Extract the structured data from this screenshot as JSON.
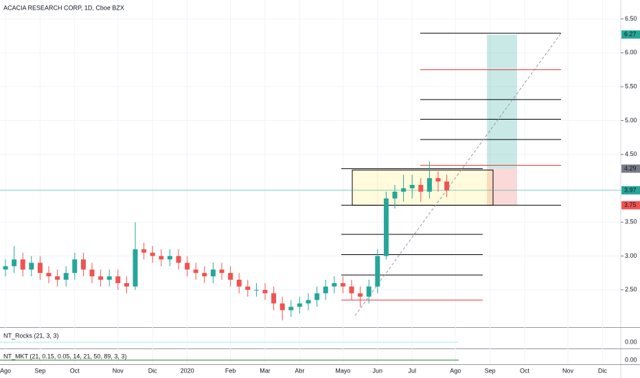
{
  "chart_data": {
    "type": "candlestick",
    "title": "ACACIA RESEARCH CORP, 1D, Cboe BZX",
    "categories": [
      "Ago",
      null,
      null,
      null,
      "Sep",
      null,
      null,
      null,
      "Oct",
      null,
      null,
      null,
      null,
      "Nov",
      null,
      null,
      null,
      "Dic",
      null,
      null,
      null,
      "2020",
      null,
      null,
      null,
      null,
      "Feb",
      null,
      null,
      null,
      "Mar",
      null,
      null,
      null,
      "Abr",
      null,
      null,
      null,
      null,
      "Mayo",
      null,
      null,
      null,
      "Jun",
      null,
      null,
      null,
      "Jul",
      null,
      null,
      null,
      null,
      "Ago",
      null,
      null,
      null,
      "Sep",
      null,
      null,
      null,
      "Oct",
      null,
      null,
      null,
      null,
      "Nov",
      null,
      null,
      null,
      "Dic",
      null,
      null
    ],
    "open": [
      2.8,
      2.85,
      2.95,
      2.8,
      2.9,
      2.75,
      2.7,
      2.65,
      2.75,
      2.95,
      2.8,
      2.7,
      2.65,
      2.7,
      2.6,
      2.55,
      3.1,
      3.05,
      3.0,
      2.95,
      3.0,
      2.9,
      2.8,
      2.75,
      2.7,
      2.8,
      2.75,
      2.65,
      2.55,
      2.5,
      2.5,
      2.45,
      2.3,
      2.2,
      2.25,
      2.3,
      2.35,
      2.45,
      2.55,
      2.6,
      2.55,
      2.45,
      2.4,
      2.55,
      3.0,
      3.85,
      3.95,
      4.0,
      4.05,
      3.95,
      4.15,
      4.1,
      null,
      null,
      null,
      null,
      null,
      null,
      null,
      null,
      null,
      null,
      null,
      null,
      null,
      null,
      null,
      null,
      null,
      null,
      null,
      null
    ],
    "high": [
      2.95,
      3.15,
      3.05,
      3.0,
      3.0,
      2.85,
      2.8,
      2.85,
      3.05,
      3.05,
      2.9,
      2.8,
      2.8,
      2.8,
      2.7,
      3.5,
      3.2,
      3.15,
      3.1,
      3.1,
      3.1,
      3.0,
      2.9,
      2.85,
      2.9,
      2.9,
      2.85,
      2.75,
      2.65,
      2.6,
      2.6,
      2.55,
      2.4,
      2.35,
      2.4,
      2.45,
      2.55,
      2.65,
      2.7,
      2.7,
      2.65,
      2.55,
      2.65,
      3.1,
      3.95,
      4.05,
      4.2,
      4.2,
      4.15,
      4.4,
      4.25,
      4.2,
      null,
      null,
      null,
      null,
      null,
      null,
      null,
      null,
      null,
      null,
      null,
      null,
      null,
      null,
      null,
      null,
      null,
      null,
      null,
      null
    ],
    "low": [
      2.7,
      2.75,
      2.7,
      2.7,
      2.65,
      2.6,
      2.55,
      2.55,
      2.65,
      2.7,
      2.6,
      2.55,
      2.55,
      2.5,
      2.45,
      2.5,
      2.95,
      2.9,
      2.85,
      2.85,
      2.8,
      2.7,
      2.65,
      2.6,
      2.6,
      2.65,
      2.55,
      2.45,
      2.4,
      2.4,
      2.35,
      2.2,
      2.05,
      2.1,
      2.15,
      2.2,
      2.25,
      2.35,
      2.45,
      2.45,
      2.35,
      2.25,
      2.3,
      2.45,
      2.95,
      3.7,
      3.8,
      3.85,
      3.8,
      3.85,
      3.95,
      3.87,
      null,
      null,
      null,
      null,
      null,
      null,
      null,
      null,
      null,
      null,
      null,
      null,
      null,
      null,
      null,
      null,
      null,
      null,
      null,
      null
    ],
    "close": [
      2.85,
      2.95,
      2.8,
      2.9,
      2.75,
      2.7,
      2.65,
      2.75,
      2.95,
      2.8,
      2.7,
      2.65,
      2.7,
      2.6,
      2.55,
      3.1,
      3.05,
      3.0,
      2.95,
      3.0,
      2.9,
      2.8,
      2.75,
      2.7,
      2.8,
      2.75,
      2.65,
      2.55,
      2.5,
      2.5,
      2.45,
      2.3,
      2.2,
      2.25,
      2.3,
      2.35,
      2.45,
      2.55,
      2.6,
      2.55,
      2.45,
      2.4,
      2.55,
      3.0,
      3.85,
      3.95,
      4.0,
      4.05,
      3.95,
      4.15,
      4.1,
      3.97,
      null,
      null,
      null,
      null,
      null,
      null,
      null,
      null,
      null,
      null,
      null,
      null,
      null,
      null,
      null,
      null,
      null,
      null,
      null,
      null
    ],
    "up_color": "#26a69a",
    "down_color": "#ef5350",
    "ylim": [
      1.95,
      6.78
    ],
    "yticks": [
      {
        "value": 6.5,
        "label": "6.50"
      },
      {
        "value": 6.0,
        "label": "6.00"
      },
      {
        "value": 5.5,
        "label": "5.50"
      },
      {
        "value": 5.0,
        "label": "5.00"
      },
      {
        "value": 4.5,
        "label": "4.50"
      },
      {
        "value": 3.5,
        "label": "3.50"
      },
      {
        "value": 3.0,
        "label": "3.00"
      },
      {
        "value": 2.5,
        "label": "2.50"
      }
    ],
    "grid": true,
    "last_price": {
      "value": 3.97,
      "label": "3.97",
      "color": "#26a69a"
    },
    "price_labels": [
      {
        "value": 6.27,
        "label": "6.27",
        "color": "#26a69a"
      },
      {
        "value": 4.29,
        "label": "4.29",
        "color": "#787b86"
      },
      {
        "value": 3.75,
        "label": "3.75",
        "color": "#ef5350"
      }
    ],
    "drawings": {
      "projection_levels": [
        {
          "price": 6.29,
          "color": "#000000"
        },
        {
          "price": 5.75,
          "color": "#e53935"
        },
        {
          "price": 5.31,
          "color": "#000000"
        },
        {
          "price": 5.02,
          "color": "#000000"
        },
        {
          "price": 4.72,
          "color": "#000000"
        },
        {
          "price": 4.34,
          "color": "#e53935"
        },
        {
          "price": 3.75,
          "color": "#000000"
        }
      ],
      "measure_levels": [
        {
          "price": 4.29,
          "color": "#000000"
        },
        {
          "price": 3.32,
          "color": "#000000"
        },
        {
          "price": 3.02,
          "color": "#000000"
        },
        {
          "price": 2.72,
          "color": "#000000"
        },
        {
          "price": 2.35,
          "color": "#e53935"
        }
      ],
      "range_box": {
        "top": 4.27,
        "bottom": 3.75
      },
      "long_position": {
        "entry": 4.29,
        "target": 6.27,
        "stop": 3.75
      },
      "trend_line": {
        "start": 2.12,
        "end": 6.29
      }
    },
    "indicators": [
      {
        "name": "NT_Rocks (21, 3, 3)",
        "axis_label": {
          "value": 0,
          "label": "0.00"
        }
      },
      {
        "name": "NT_MKT (21, 0.15, 0.05, 14, 21, 50, 89, 3, 3)",
        "axis_label": {
          "value": 0,
          "label": "0.00"
        }
      }
    ]
  }
}
